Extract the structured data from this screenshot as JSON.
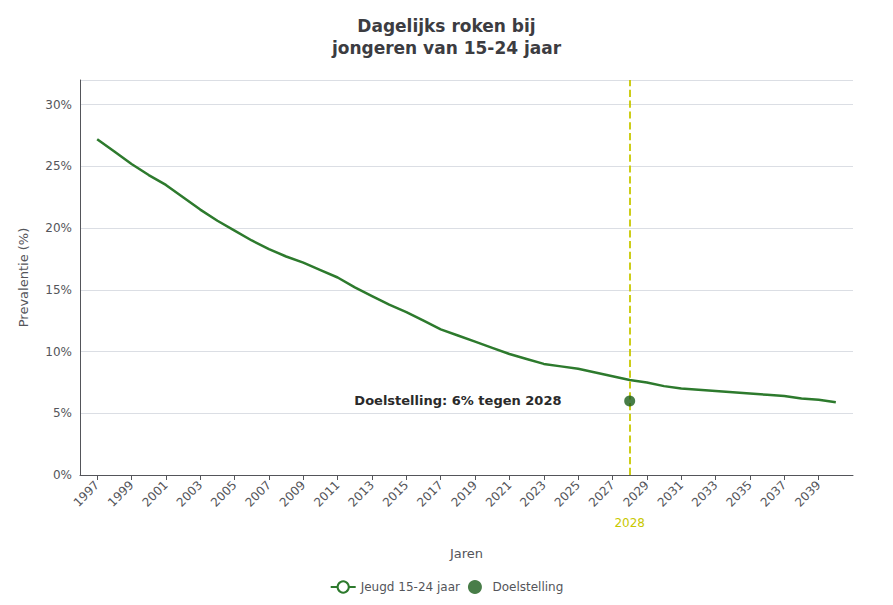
{
  "chart_data": {
    "type": "line",
    "title": "Dagelijks roken bij\njongeren van 15-24 jaar",
    "xlabel": "Jaren",
    "ylabel": "Prevalentie (%)",
    "x": [
      1997,
      1998,
      1999,
      2000,
      2001,
      2002,
      2003,
      2004,
      2005,
      2006,
      2007,
      2008,
      2009,
      2010,
      2011,
      2012,
      2013,
      2014,
      2015,
      2016,
      2017,
      2018,
      2019,
      2020,
      2021,
      2022,
      2023,
      2024,
      2025,
      2026,
      2027,
      2028,
      2029,
      2030,
      2031,
      2032,
      2033,
      2034,
      2035,
      2036,
      2037,
      2038,
      2039,
      2040
    ],
    "series": [
      {
        "name": "Jeugd 15-24 jaar",
        "type": "line",
        "color": "#2d7a2d",
        "values": [
          27.2,
          26.2,
          25.2,
          24.3,
          23.5,
          22.5,
          21.5,
          20.6,
          19.8,
          19.0,
          18.3,
          17.7,
          17.2,
          16.6,
          16.0,
          15.2,
          14.5,
          13.8,
          13.2,
          12.5,
          11.8,
          11.3,
          10.8,
          10.3,
          9.8,
          9.4,
          9.0,
          8.8,
          8.6,
          8.3,
          8.0,
          7.7,
          7.5,
          7.2,
          7.0,
          6.9,
          6.8,
          6.7,
          6.6,
          6.5,
          6.4,
          6.2,
          6.1,
          5.9
        ]
      },
      {
        "name": "Doelstelling",
        "type": "scatter",
        "color": "#1a5c1a",
        "x": [
          2028
        ],
        "values": [
          6.0
        ]
      }
    ],
    "annotations": [
      {
        "text": "Doelstelling: 6% tegen 2028",
        "x": 2018.0,
        "y": 6.0
      }
    ],
    "vlines": [
      {
        "x": 2028,
        "label": "2028",
        "color": "#c8c800",
        "line_style": "dashed"
      }
    ],
    "xlim": [
      1996,
      2041
    ],
    "xticks": [
      1997,
      1999,
      2001,
      2003,
      2005,
      2007,
      2009,
      2011,
      2013,
      2015,
      2017,
      2019,
      2021,
      2023,
      2025,
      2027,
      2029,
      2031,
      2033,
      2035,
      2037,
      2039
    ],
    "ylim": [
      0,
      32
    ],
    "yticks": [
      {
        "value": 0,
        "label": "0%"
      },
      {
        "value": 5,
        "label": "5%"
      },
      {
        "value": 10,
        "label": "10%"
      },
      {
        "value": 15,
        "label": "15%"
      },
      {
        "value": 20,
        "label": "20%"
      },
      {
        "value": 25,
        "label": "25%"
      },
      {
        "value": 30,
        "label": "30%"
      }
    ],
    "grid": true,
    "legend": "bottom"
  }
}
